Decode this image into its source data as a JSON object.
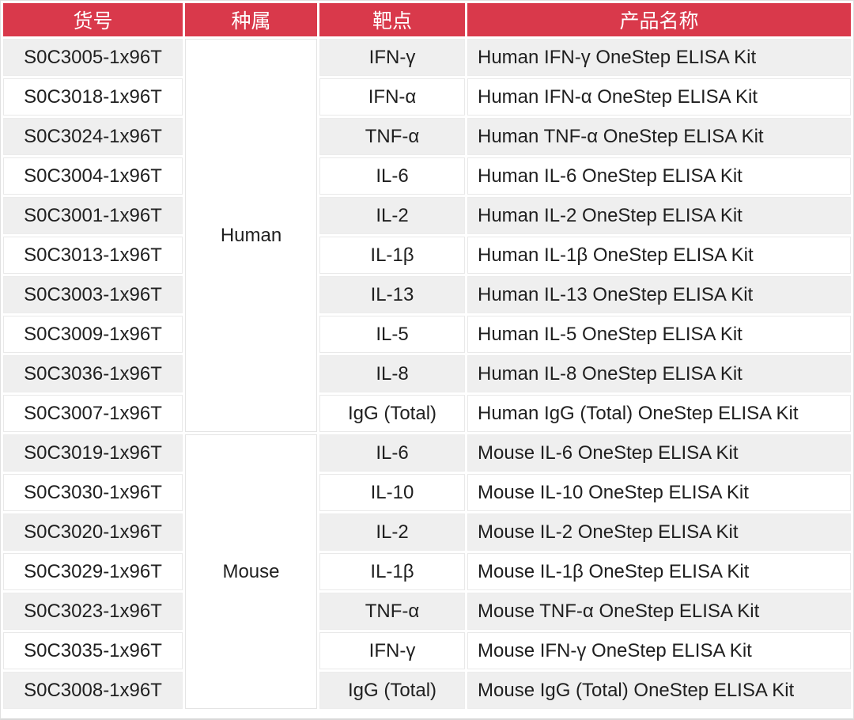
{
  "table": {
    "columns": [
      {
        "label": "货号"
      },
      {
        "label": "种属"
      },
      {
        "label": "靶点"
      },
      {
        "label": "产品名称"
      }
    ],
    "groups": [
      {
        "species": "Human",
        "row_count": 10
      },
      {
        "species": "Mouse",
        "row_count": 7
      }
    ],
    "rows": [
      {
        "catalog": "S0C3005-1x96T",
        "target": "IFN-γ",
        "product": "Human IFN-γ OneStep ELISA Kit"
      },
      {
        "catalog": "S0C3018-1x96T",
        "target": "IFN-α",
        "product": "Human IFN-α OneStep ELISA Kit"
      },
      {
        "catalog": "S0C3024-1x96T",
        "target": "TNF-α",
        "product": "Human TNF-α OneStep ELISA Kit"
      },
      {
        "catalog": "S0C3004-1x96T",
        "target": "IL-6",
        "product": "Human IL-6 OneStep ELISA Kit"
      },
      {
        "catalog": "S0C3001-1x96T",
        "target": "IL-2",
        "product": "Human IL-2 OneStep ELISA Kit"
      },
      {
        "catalog": "S0C3013-1x96T",
        "target": "IL-1β",
        "product": "Human IL-1β OneStep ELISA Kit"
      },
      {
        "catalog": "S0C3003-1x96T",
        "target": "IL-13",
        "product": "Human IL-13 OneStep ELISA Kit"
      },
      {
        "catalog": "S0C3009-1x96T",
        "target": "IL-5",
        "product": "Human IL-5 OneStep ELISA Kit"
      },
      {
        "catalog": "S0C3036-1x96T",
        "target": "IL-8",
        "product": "Human IL-8 OneStep ELISA Kit"
      },
      {
        "catalog": "S0C3007-1x96T",
        "target": "IgG (Total)",
        "product": "Human IgG (Total) OneStep ELISA Kit"
      },
      {
        "catalog": "S0C3019-1x96T",
        "target": "IL-6",
        "product": "Mouse IL-6 OneStep ELISA Kit"
      },
      {
        "catalog": "S0C3030-1x96T",
        "target": "IL-10",
        "product": "Mouse IL-10 OneStep ELISA Kit"
      },
      {
        "catalog": "S0C3020-1x96T",
        "target": "IL-2",
        "product": "Mouse IL-2 OneStep ELISA Kit"
      },
      {
        "catalog": "S0C3029-1x96T",
        "target": "IL-1β",
        "product": "Mouse IL-1β OneStep ELISA Kit"
      },
      {
        "catalog": "S0C3023-1x96T",
        "target": "TNF-α",
        "product": "Mouse TNF-α OneStep ELISA Kit"
      },
      {
        "catalog": "S0C3035-1x96T",
        "target": "IFN-γ",
        "product": "Mouse IFN-γ OneStep ELISA Kit"
      },
      {
        "catalog": "S0C3008-1x96T",
        "target": "IgG (Total)",
        "product": "Mouse IgG (Total) OneStep ELISA Kit"
      }
    ]
  },
  "colors": {
    "header_bg": "#d9394b",
    "header_text": "#ffffff",
    "row_alt_bg": "#efefef",
    "row_bg": "#ffffff",
    "body_text": "#1f1f1f"
  }
}
